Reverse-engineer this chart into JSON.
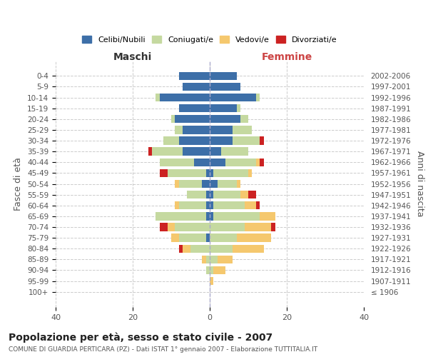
{
  "age_groups": [
    "100+",
    "95-99",
    "90-94",
    "85-89",
    "80-84",
    "75-79",
    "70-74",
    "65-69",
    "60-64",
    "55-59",
    "50-54",
    "45-49",
    "40-44",
    "35-39",
    "30-34",
    "25-29",
    "20-24",
    "15-19",
    "10-14",
    "5-9",
    "0-4"
  ],
  "birth_years": [
    "≤ 1906",
    "1907-1911",
    "1912-1916",
    "1917-1921",
    "1922-1926",
    "1927-1931",
    "1932-1936",
    "1937-1941",
    "1942-1946",
    "1947-1951",
    "1952-1956",
    "1957-1961",
    "1962-1966",
    "1967-1971",
    "1972-1976",
    "1977-1981",
    "1982-1986",
    "1987-1991",
    "1992-1996",
    "1997-2001",
    "2002-2006"
  ],
  "males": {
    "celibi": [
      0,
      0,
      0,
      0,
      0,
      1,
      0,
      1,
      1,
      1,
      2,
      1,
      4,
      7,
      8,
      7,
      9,
      8,
      13,
      7,
      8
    ],
    "coniugati": [
      0,
      0,
      1,
      1,
      5,
      7,
      9,
      13,
      7,
      5,
      6,
      10,
      9,
      8,
      4,
      2,
      1,
      0,
      1,
      0,
      0
    ],
    "vedovi": [
      0,
      0,
      0,
      1,
      2,
      2,
      2,
      0,
      1,
      0,
      1,
      0,
      0,
      0,
      0,
      0,
      0,
      0,
      0,
      0,
      0
    ],
    "divorziati": [
      0,
      0,
      0,
      0,
      1,
      0,
      2,
      0,
      0,
      0,
      0,
      2,
      0,
      1,
      0,
      0,
      0,
      0,
      0,
      0,
      0
    ]
  },
  "females": {
    "nubili": [
      0,
      0,
      0,
      0,
      0,
      0,
      0,
      1,
      1,
      1,
      2,
      1,
      4,
      3,
      6,
      6,
      8,
      7,
      12,
      8,
      7
    ],
    "coniugate": [
      0,
      0,
      1,
      2,
      6,
      7,
      9,
      12,
      8,
      7,
      5,
      9,
      8,
      7,
      7,
      5,
      2,
      1,
      1,
      0,
      0
    ],
    "vedove": [
      0,
      1,
      3,
      4,
      8,
      9,
      7,
      4,
      3,
      2,
      1,
      1,
      1,
      0,
      0,
      0,
      0,
      0,
      0,
      0,
      0
    ],
    "divorziate": [
      0,
      0,
      0,
      0,
      0,
      0,
      1,
      0,
      1,
      2,
      0,
      0,
      1,
      0,
      1,
      0,
      0,
      0,
      0,
      0,
      0
    ]
  },
  "colors": {
    "celibi": "#3d6fa8",
    "coniugati": "#c5d9a0",
    "vedovi": "#f5c86e",
    "divorziati": "#cc2222"
  },
  "title": "Popolazione per età, sesso e stato civile - 2007",
  "subtitle": "COMUNE DI GUARDIA PERTICARA (PZ) - Dati ISTAT 1° gennaio 2007 - Elaborazione TUTTITALIA.IT",
  "xlabel_left": "Maschi",
  "xlabel_right": "Femmine",
  "ylabel_left": "Fasce di età",
  "ylabel_right": "Anni di nascita",
  "xlim": 40,
  "background_color": "#ffffff",
  "grid_color": "#cccccc"
}
